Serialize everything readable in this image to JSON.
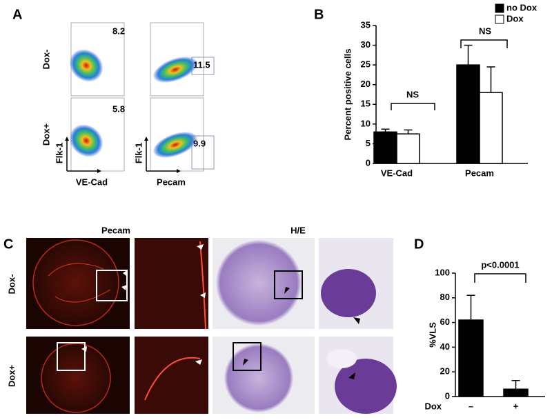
{
  "panel_labels": [
    "A",
    "B",
    "C",
    "D"
  ],
  "flow": {
    "rows": [
      "Dox-",
      "Dox+"
    ],
    "x_labels": [
      "VE-Cad",
      "Pecam"
    ],
    "y_label": "Flk-1",
    "gates": [
      [
        8.2,
        11.5
      ],
      [
        5.8,
        9.9
      ]
    ]
  },
  "histology": {
    "titles": [
      "Pecam",
      "H/E"
    ],
    "rows": [
      "Dox-",
      "Dox+"
    ]
  },
  "chart_data": [
    {
      "type": "bar",
      "y_label": "Percent positive cells",
      "categories": [
        "VE-Cad",
        "Pecam"
      ],
      "series": [
        {
          "name": "no Dox",
          "color": "#000000",
          "values": [
            8,
            25
          ],
          "errors": [
            0.7,
            5
          ]
        },
        {
          "name": "Dox",
          "color": "#ffffff",
          "values": [
            7.5,
            18
          ],
          "errors": [
            1,
            6.5
          ]
        }
      ],
      "ylim": [
        0,
        35
      ],
      "yticks": [
        0,
        5,
        10,
        15,
        20,
        25,
        30,
        35
      ],
      "annotations": [
        "NS",
        "NS"
      ],
      "legend": "top-right"
    },
    {
      "type": "bar",
      "y_label": "%VLS",
      "x_label": "Dox",
      "categories": [
        "–",
        "+"
      ],
      "values": [
        62,
        6
      ],
      "errors": [
        20,
        7
      ],
      "color": "#000000",
      "ylim": [
        0,
        100
      ],
      "yticks": [
        0,
        20,
        40,
        60,
        80,
        100
      ],
      "annotations": [
        "p<0.0001"
      ]
    }
  ]
}
